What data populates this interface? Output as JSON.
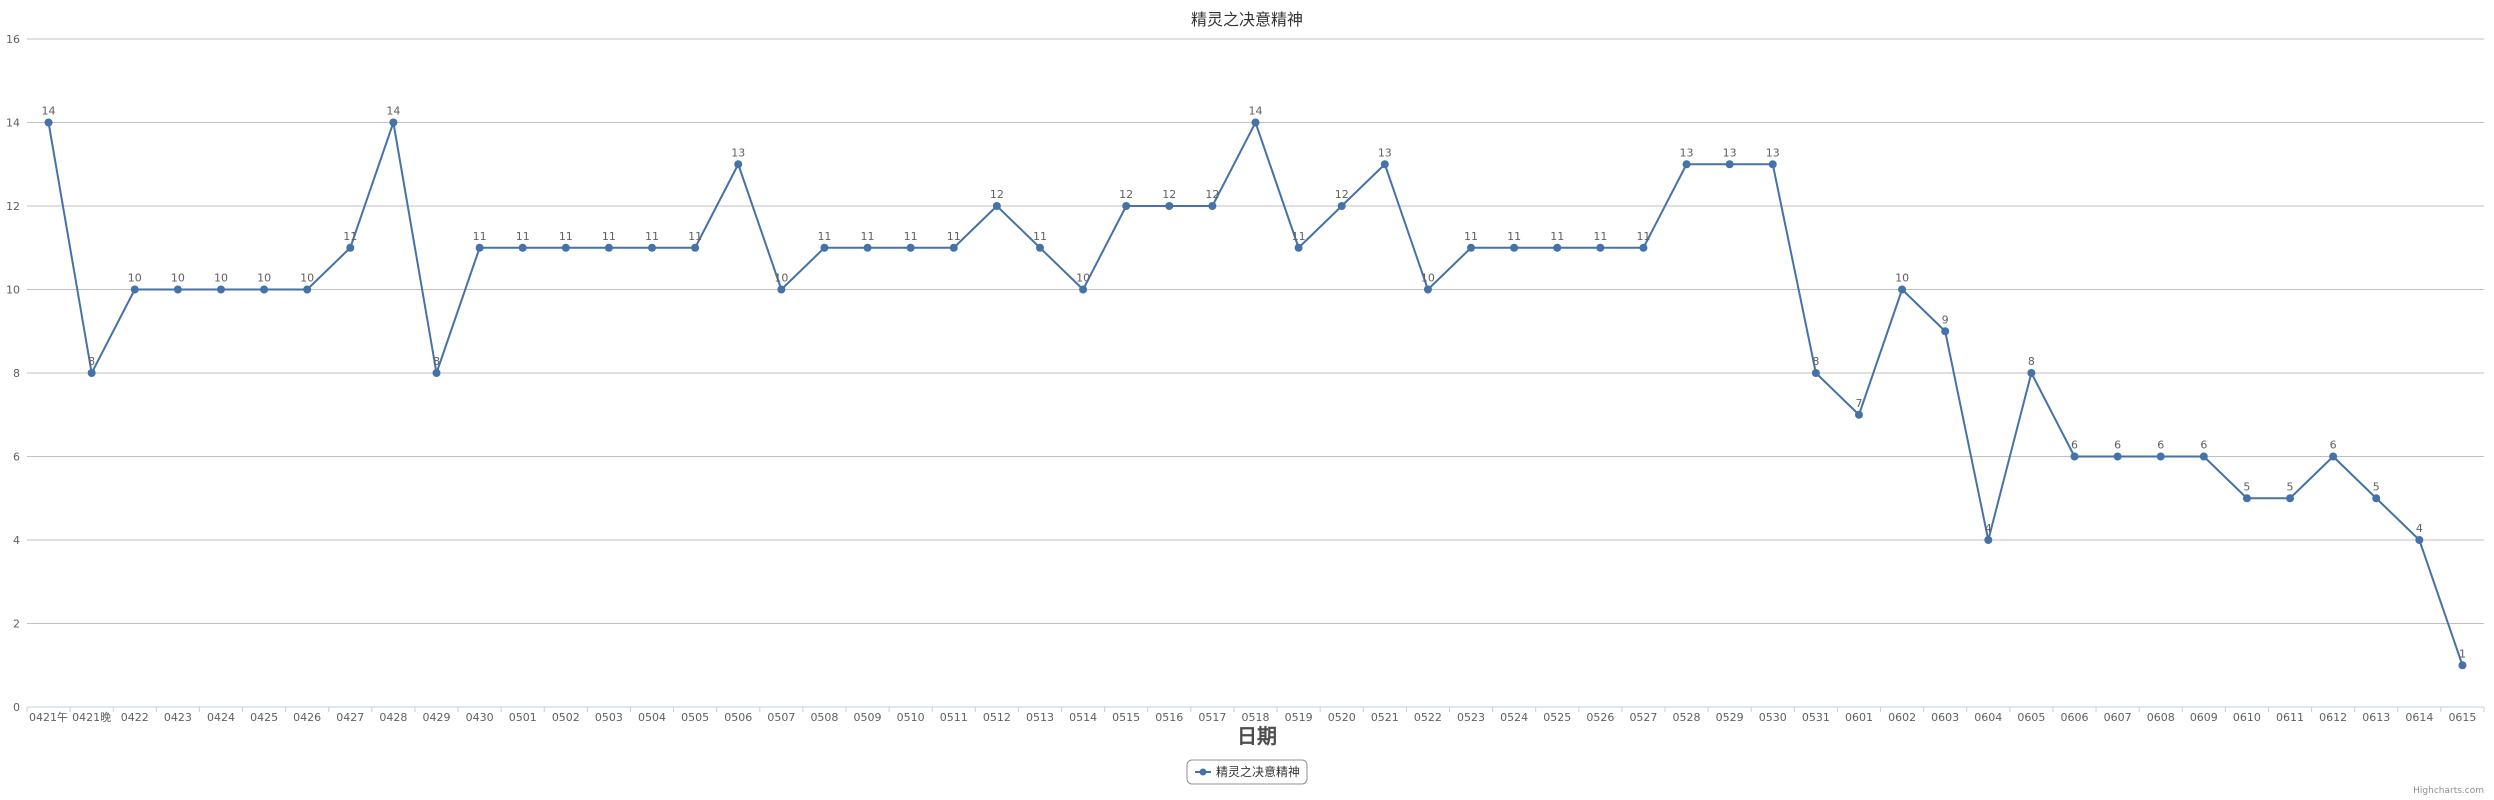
{
  "chart_data": {
    "type": "line",
    "title": "精灵之决意精神",
    "xlabel": "日期",
    "ylabel": "",
    "ylim": [
      0,
      16
    ],
    "yticks": [
      0,
      2,
      4,
      6,
      8,
      10,
      12,
      14,
      16
    ],
    "grid": true,
    "legend_position": "bottom-center",
    "categories": [
      "0421午",
      "0421晚",
      "0422",
      "0423",
      "0424",
      "0425",
      "0426",
      "0427",
      "0428",
      "0429",
      "0430",
      "0501",
      "0502",
      "0503",
      "0504",
      "0505",
      "0506",
      "0507",
      "0508",
      "0509",
      "0510",
      "0511",
      "0512",
      "0513",
      "0514",
      "0515",
      "0516",
      "0517",
      "0518",
      "0519",
      "0520",
      "0521",
      "0522",
      "0523",
      "0524",
      "0525",
      "0526",
      "0527",
      "0528",
      "0529",
      "0530",
      "0531",
      "0601",
      "0602",
      "0603",
      "0604",
      "0605",
      "0606",
      "0607",
      "0608",
      "0609",
      "0610",
      "0611",
      "0612",
      "0613",
      "0614",
      "0615"
    ],
    "series": [
      {
        "name": "精灵之决意精神",
        "color": "#4572a7",
        "values": [
          14,
          8,
          10,
          10,
          10,
          10,
          10,
          11,
          14,
          8,
          11,
          11,
          11,
          11,
          11,
          11,
          13,
          10,
          11,
          11,
          11,
          11,
          12,
          11,
          10,
          12,
          12,
          12,
          14,
          11,
          12,
          13,
          10,
          11,
          11,
          11,
          11,
          11,
          13,
          13,
          13,
          8,
          7,
          10,
          9,
          4,
          8,
          6,
          6,
          6,
          6,
          5,
          5,
          6,
          5,
          4,
          1
        ]
      }
    ],
    "credits": "Highcharts.com"
  }
}
